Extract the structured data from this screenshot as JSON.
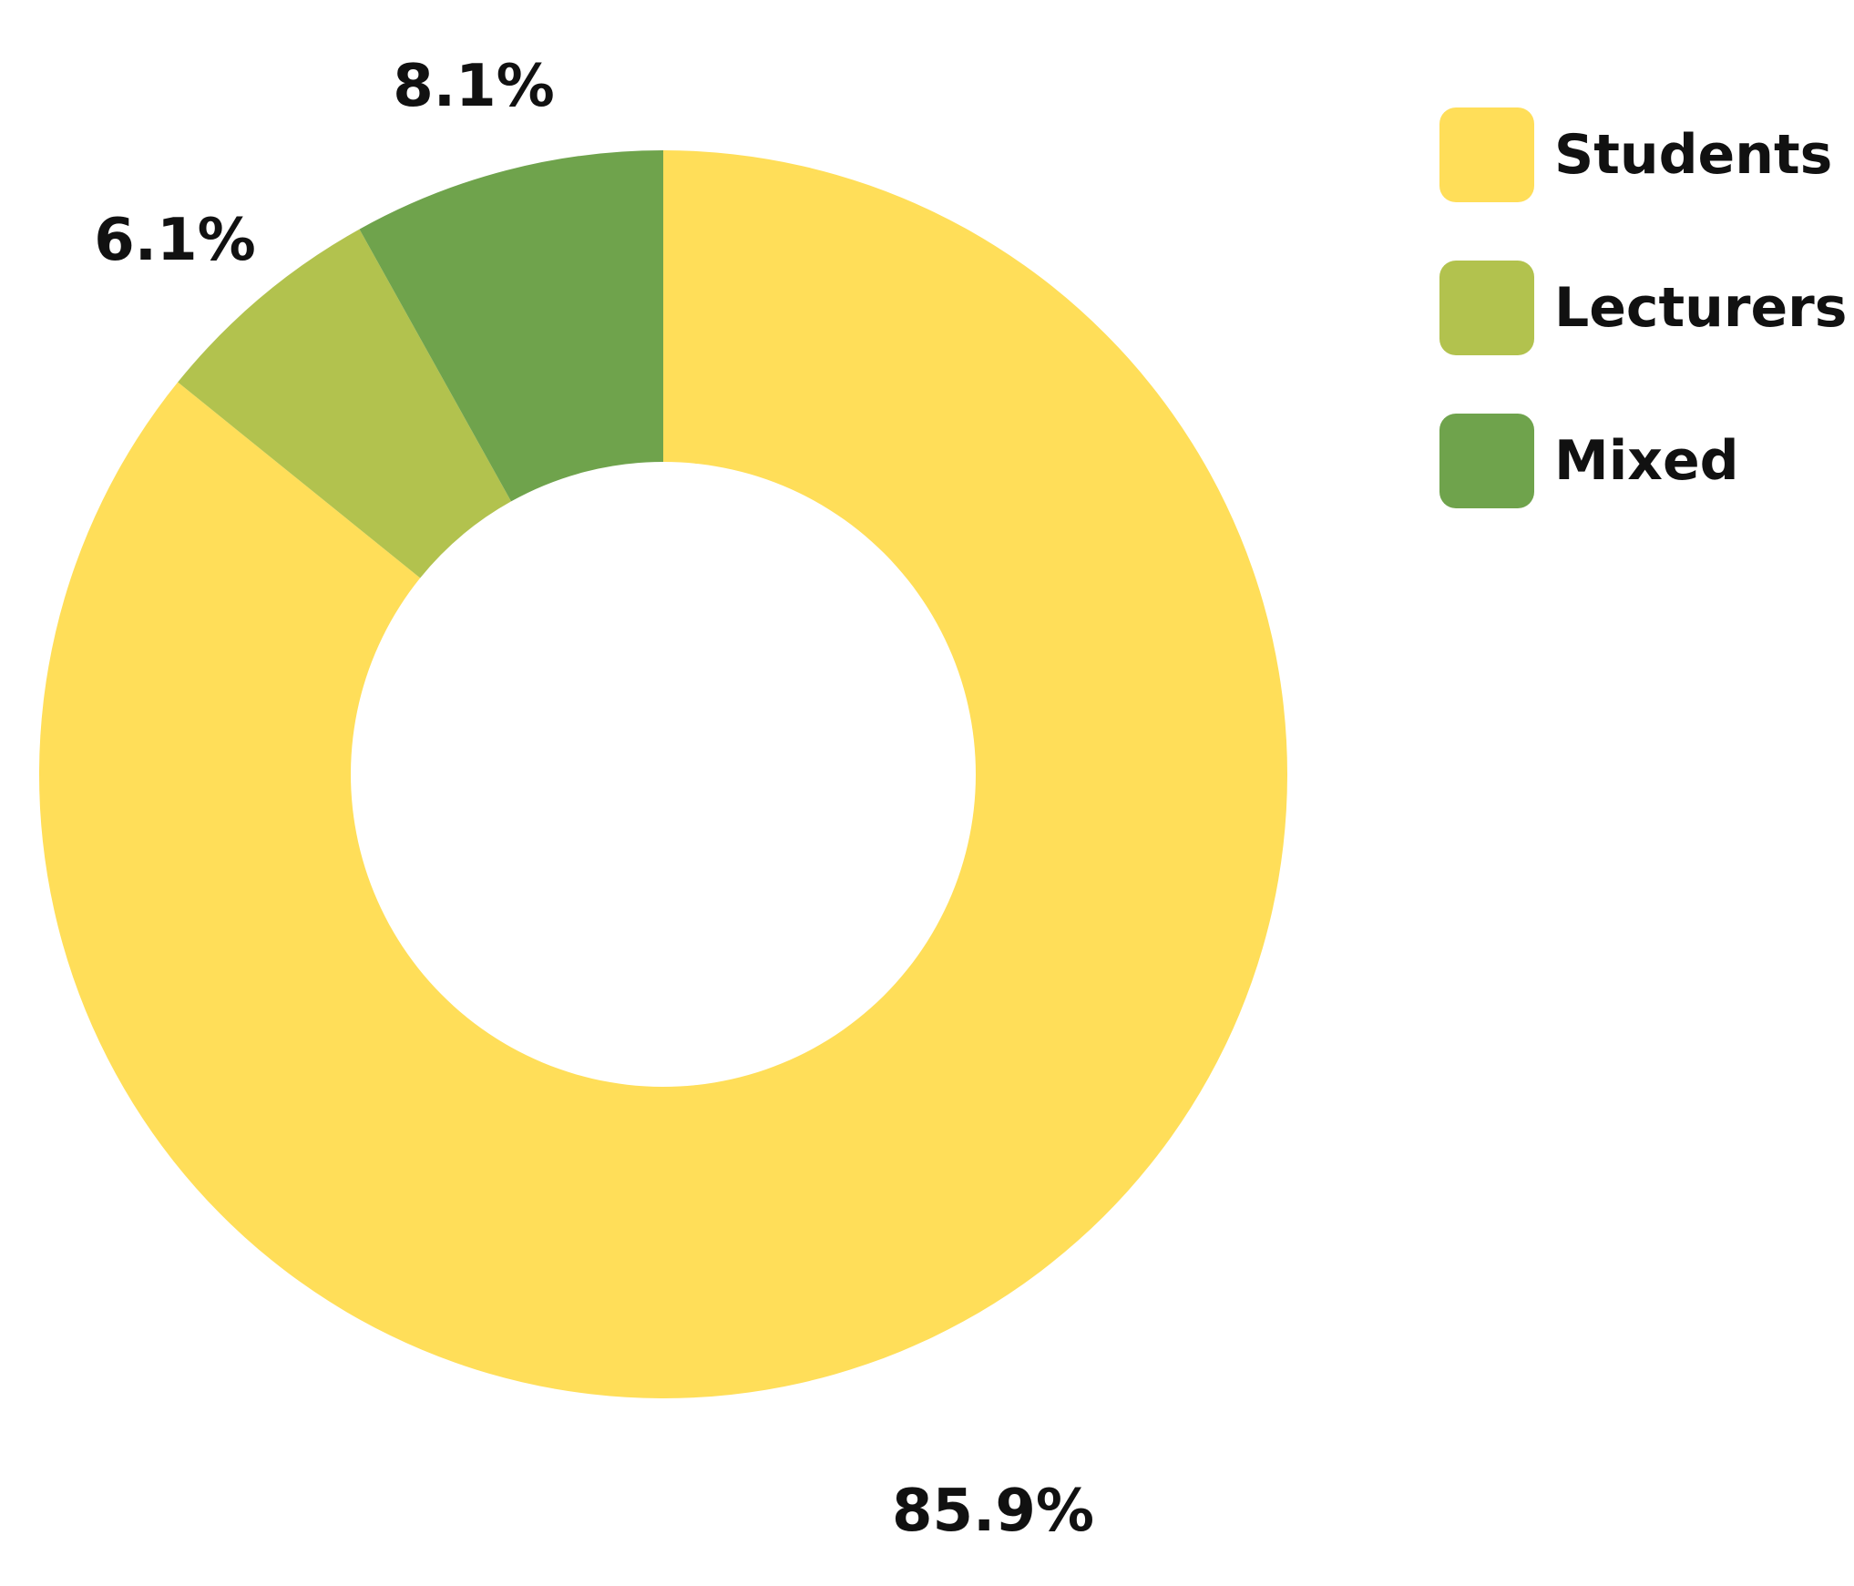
{
  "chart_data": {
    "type": "pie",
    "donut": true,
    "start_angle": "12 o'clock",
    "direction": "clockwise",
    "slices": [
      {
        "name": "Students",
        "value": 85.9,
        "label": "85.9%",
        "color": "#FFDE59"
      },
      {
        "name": "Lecturers",
        "value": 6.1,
        "label": "6.1%",
        "color": "#B2C24E"
      },
      {
        "name": "Mixed",
        "value": 8.1,
        "label": "8.1%",
        "color": "#6FA34C"
      }
    ],
    "legend": {
      "placement": "top-right",
      "entries": [
        "Students",
        "Lecturers",
        "Mixed"
      ]
    }
  }
}
